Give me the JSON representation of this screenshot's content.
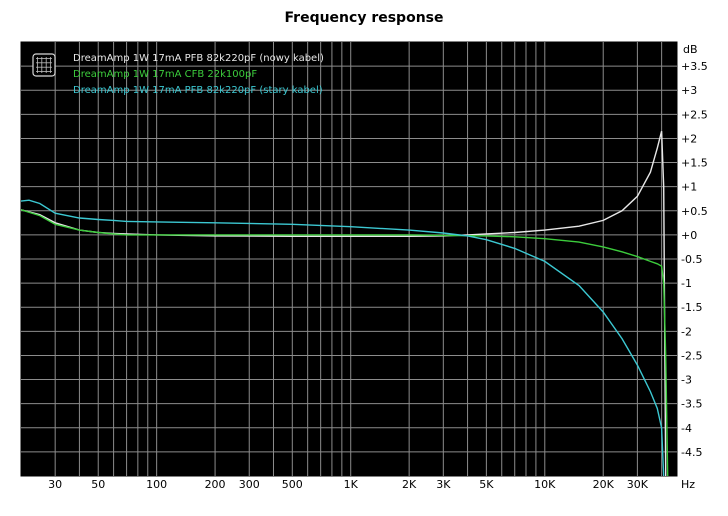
{
  "chart_data": {
    "type": "line",
    "title": "Frequency response",
    "x_unit": "Hz",
    "y_unit": "dB",
    "x_scale": "log",
    "xlim": [
      20,
      48000
    ],
    "ylim": [
      -5,
      4
    ],
    "grid": true,
    "background": "#000000",
    "grid_color": "#8c8c8c",
    "legend_position": "top-left",
    "x_ticks": [
      {
        "value": 30,
        "label": "30"
      },
      {
        "value": 50,
        "label": "50"
      },
      {
        "value": 100,
        "label": "100"
      },
      {
        "value": 200,
        "label": "200"
      },
      {
        "value": 300,
        "label": "300"
      },
      {
        "value": 500,
        "label": "500"
      },
      {
        "value": 1000,
        "label": "1K"
      },
      {
        "value": 2000,
        "label": "2K"
      },
      {
        "value": 3000,
        "label": "3K"
      },
      {
        "value": 5000,
        "label": "5K"
      },
      {
        "value": 10000,
        "label": "10K"
      },
      {
        "value": 20000,
        "label": "20K"
      },
      {
        "value": 30000,
        "label": "30K"
      }
    ],
    "y_ticks": [
      {
        "value": 3.5,
        "label": "+3.5"
      },
      {
        "value": 3,
        "label": "+3"
      },
      {
        "value": 2.5,
        "label": "+2.5"
      },
      {
        "value": 2,
        "label": "+2"
      },
      {
        "value": 1.5,
        "label": "+1.5"
      },
      {
        "value": 1,
        "label": "+1"
      },
      {
        "value": 0.5,
        "label": "+0.5"
      },
      {
        "value": 0,
        "label": "+0"
      },
      {
        "value": -0.5,
        "label": "-0.5"
      },
      {
        "value": -1,
        "label": "-1"
      },
      {
        "value": -1.5,
        "label": "-1.5"
      },
      {
        "value": -2,
        "label": "-2"
      },
      {
        "value": -2.5,
        "label": "-2.5"
      },
      {
        "value": -3,
        "label": "-3"
      },
      {
        "value": -3.5,
        "label": "-3.5"
      },
      {
        "value": -4,
        "label": "-4"
      },
      {
        "value": -4.5,
        "label": "-4.5"
      }
    ],
    "series": [
      {
        "name": "DreamAmp 1W 17mA PFB 82k220pF (nowy kabel)",
        "color": "#e8e8e8",
        "x": [
          20,
          25,
          30,
          40,
          50,
          60,
          70,
          100,
          200,
          500,
          1000,
          2000,
          3000,
          4000,
          5000,
          7000,
          10000,
          15000,
          20000,
          25000,
          30000,
          35000,
          38000,
          40000,
          41000,
          42000
        ],
        "y": [
          0.52,
          0.42,
          0.25,
          0.1,
          0.05,
          0.03,
          0.02,
          0.0,
          -0.02,
          -0.03,
          -0.03,
          -0.03,
          -0.02,
          0.0,
          0.02,
          0.05,
          0.1,
          0.18,
          0.3,
          0.5,
          0.8,
          1.3,
          1.8,
          2.15,
          1.0,
          -5.0
        ]
      },
      {
        "name": "DreamAmp 1W 17mA CFB 22k100pF",
        "color": "#3ccc3c",
        "x": [
          20,
          25,
          30,
          40,
          50,
          60,
          70,
          100,
          200,
          500,
          1000,
          2000,
          3000,
          5000,
          7000,
          10000,
          15000,
          20000,
          25000,
          30000,
          35000,
          38000,
          40000,
          41000,
          42000,
          43000
        ],
        "y": [
          0.52,
          0.4,
          0.22,
          0.1,
          0.05,
          0.02,
          0.0,
          0.0,
          0.0,
          0.0,
          0.0,
          0.0,
          -0.01,
          -0.02,
          -0.04,
          -0.08,
          -0.15,
          -0.25,
          -0.35,
          -0.45,
          -0.55,
          -0.6,
          -0.65,
          -1.0,
          -2.5,
          -5.0
        ]
      },
      {
        "name": "DreamAmp 1W 17mA PFB 82k220pF (stary kabel)",
        "color": "#3cc8d2",
        "x": [
          20,
          22,
          25,
          30,
          40,
          50,
          60,
          70,
          100,
          200,
          500,
          1000,
          2000,
          3000,
          4000,
          5000,
          7000,
          10000,
          15000,
          20000,
          25000,
          30000,
          35000,
          38000,
          40000,
          41000
        ],
        "y": [
          0.7,
          0.72,
          0.65,
          0.45,
          0.35,
          0.32,
          0.3,
          0.28,
          0.27,
          0.25,
          0.22,
          0.17,
          0.1,
          0.04,
          -0.02,
          -0.1,
          -0.28,
          -0.55,
          -1.05,
          -1.6,
          -2.15,
          -2.7,
          -3.25,
          -3.6,
          -4.0,
          -5.0
        ]
      }
    ]
  }
}
